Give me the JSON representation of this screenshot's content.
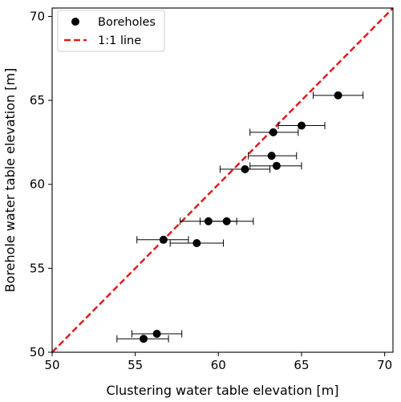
{
  "chart_data": {
    "type": "scatter",
    "xlabel": "Clustering water table elevation [m]",
    "ylabel": "Borehole water table elevation [m]",
    "xlim": [
      50,
      70.5
    ],
    "ylim": [
      50,
      70.5
    ],
    "xticks": [
      50,
      55,
      60,
      65,
      70
    ],
    "yticks": [
      50,
      55,
      60,
      65,
      70
    ],
    "grid": false,
    "legend_position": "top-left",
    "series": [
      {
        "name": "Boreholes",
        "marker": "circle",
        "color": "#000000",
        "points": [
          {
            "x": 67.2,
            "y": 65.3,
            "xmin": 65.7,
            "xmax": 68.7
          },
          {
            "x": 65.0,
            "y": 63.5,
            "xmin": 63.6,
            "xmax": 66.4
          },
          {
            "x": 63.3,
            "y": 63.1,
            "xmin": 61.9,
            "xmax": 64.8
          },
          {
            "x": 63.2,
            "y": 61.7,
            "xmin": 61.8,
            "xmax": 64.7
          },
          {
            "x": 63.5,
            "y": 61.1,
            "xmin": 61.9,
            "xmax": 65.0
          },
          {
            "x": 61.6,
            "y": 60.9,
            "xmin": 60.1,
            "xmax": 63.1
          },
          {
            "x": 60.5,
            "y": 57.8,
            "xmin": 58.9,
            "xmax": 62.1
          },
          {
            "x": 59.4,
            "y": 57.8,
            "xmin": 57.7,
            "xmax": 61.1
          },
          {
            "x": 56.7,
            "y": 56.7,
            "xmin": 55.1,
            "xmax": 58.2
          },
          {
            "x": 58.7,
            "y": 56.5,
            "xmin": 57.1,
            "xmax": 60.3
          },
          {
            "x": 56.3,
            "y": 51.1,
            "xmin": 54.8,
            "xmax": 57.8
          },
          {
            "x": 55.5,
            "y": 50.8,
            "xmin": 53.9,
            "xmax": 57.0
          }
        ]
      },
      {
        "name": "1:1 line",
        "type": "line",
        "style": "dashed",
        "color": "#e41a1c",
        "x": [
          50,
          70.5
        ],
        "y": [
          50,
          70.5
        ]
      }
    ]
  }
}
